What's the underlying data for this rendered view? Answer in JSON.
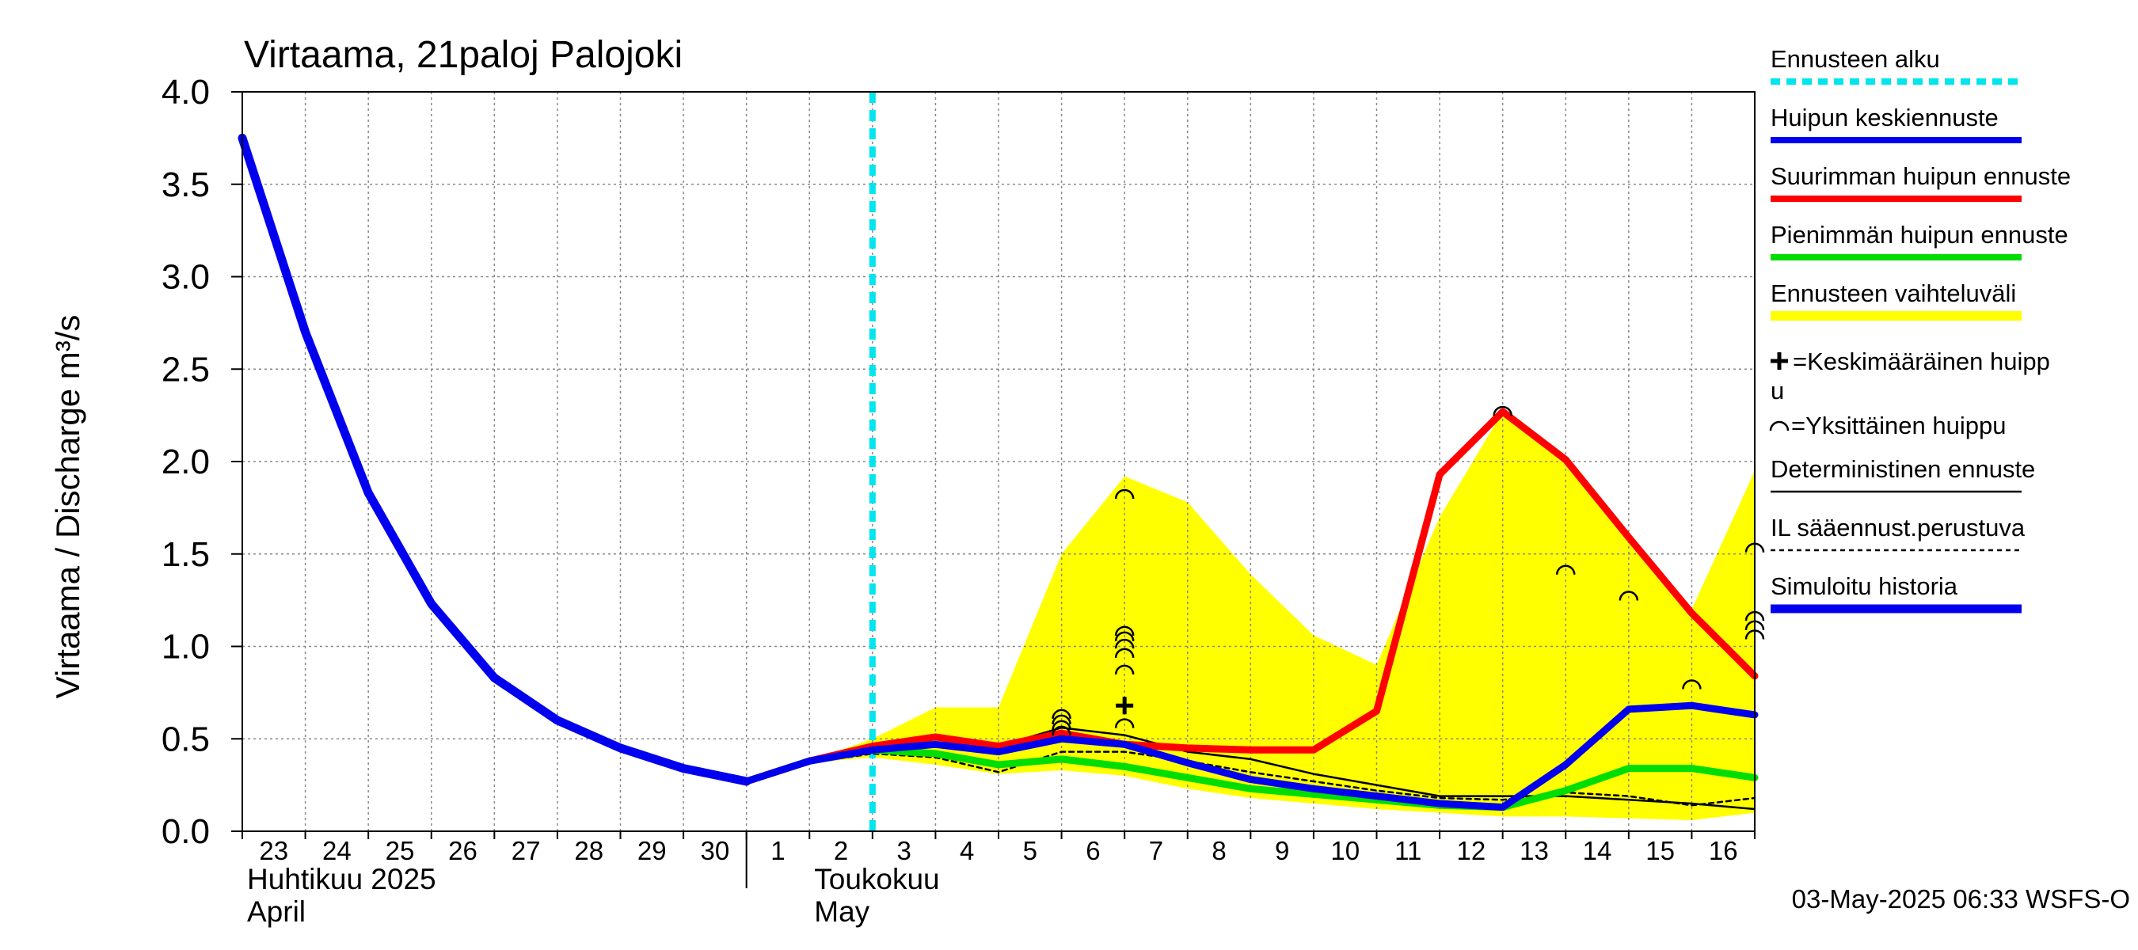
{
  "title": "Virtaama, 21paloj Palojoki",
  "timestamp": "03-May-2025 06:33 WSFS-O",
  "colors": {
    "history": "#0000ee",
    "mean_peak": "#0000ee",
    "max_peak": "#ff0000",
    "min_peak": "#00dd00",
    "range": "#ffff00",
    "forecast_start": "#00e5ee",
    "deterministic": "#000000",
    "grid": "#888888"
  },
  "chart_data": {
    "type": "line",
    "title": "Virtaama, 21paloj Palojoki",
    "ylabel": "Virtaama / Discharge    m³/s",
    "ylim": [
      0,
      4
    ],
    "xlim": [
      0,
      24
    ],
    "yticks": [
      {
        "v": 0,
        "label": "0.0"
      },
      {
        "v": 0.5,
        "label": "0.5"
      },
      {
        "v": 1.0,
        "label": "1.0"
      },
      {
        "v": 1.5,
        "label": "1.5"
      },
      {
        "v": 2.0,
        "label": "2.0"
      },
      {
        "v": 2.5,
        "label": "2.5"
      },
      {
        "v": 3.0,
        "label": "3.0"
      },
      {
        "v": 3.5,
        "label": "3.5"
      },
      {
        "v": 4.0,
        "label": "4.0"
      }
    ],
    "day_labels": [
      "23",
      "24",
      "25",
      "26",
      "27",
      "28",
      "29",
      "30",
      "1",
      "2",
      "3",
      "4",
      "5",
      "6",
      "7",
      "8",
      "9",
      "10",
      "11",
      "12",
      "13",
      "14",
      "15",
      "16"
    ],
    "months": [
      {
        "fi": "Huhtikuu  2025",
        "en": "April",
        "x": 0
      },
      {
        "fi": "Toukokuu",
        "en": "May",
        "x": 9
      }
    ],
    "month_divider_x": 8,
    "forecast_start_x": 10.0,
    "series": [
      {
        "name": "Simuloitu historia",
        "x": [
          0,
          1,
          2,
          3,
          4,
          5,
          6,
          7,
          8
        ],
        "y": [
          3.75,
          2.7,
          1.83,
          1.23,
          0.83,
          0.6,
          0.45,
          0.34,
          0.27
        ]
      },
      {
        "name": "Huipun keskiennuste",
        "x": [
          8,
          9,
          10,
          11,
          12,
          13,
          14,
          15,
          16,
          17,
          18,
          19,
          20,
          21,
          22,
          23,
          24
        ],
        "y": [
          0.27,
          0.38,
          0.44,
          0.47,
          0.43,
          0.5,
          0.47,
          0.37,
          0.28,
          0.23,
          0.19,
          0.15,
          0.13,
          0.36,
          0.66,
          0.68,
          0.63
        ]
      },
      {
        "name": "Suurimman huipun ennuste",
        "x": [
          8,
          9,
          10,
          11,
          12,
          13,
          14,
          15,
          16,
          17,
          18,
          19,
          20,
          21,
          22,
          23,
          24
        ],
        "y": [
          0.27,
          0.38,
          0.46,
          0.51,
          0.46,
          0.53,
          0.47,
          0.45,
          0.44,
          0.44,
          0.65,
          1.93,
          2.27,
          2.01,
          1.59,
          1.18,
          0.84
        ]
      },
      {
        "name": "Pienimmän huipun ennuste",
        "x": [
          8,
          9,
          10,
          11,
          12,
          13,
          14,
          15,
          16,
          17,
          18,
          19,
          20,
          21,
          22,
          23,
          24
        ],
        "y": [
          0.27,
          0.38,
          0.44,
          0.42,
          0.36,
          0.39,
          0.35,
          0.29,
          0.23,
          0.2,
          0.17,
          0.14,
          0.13,
          0.22,
          0.34,
          0.34,
          0.29
        ]
      },
      {
        "name": "Deterministinen ennuste",
        "x": [
          8,
          9,
          10,
          11,
          12,
          13,
          14,
          15,
          16,
          17,
          18,
          19,
          20,
          21,
          22,
          23,
          24
        ],
        "y": [
          0.27,
          0.38,
          0.46,
          0.48,
          0.46,
          0.56,
          0.52,
          0.43,
          0.39,
          0.31,
          0.25,
          0.19,
          0.19,
          0.19,
          0.17,
          0.15,
          0.12
        ]
      },
      {
        "name": "IL sääennust.perustuva",
        "x": [
          8,
          9,
          10,
          11,
          12,
          13,
          14,
          15,
          16,
          17,
          18,
          19,
          20,
          21,
          22,
          23,
          24
        ],
        "y": [
          0.27,
          0.37,
          0.42,
          0.4,
          0.32,
          0.43,
          0.43,
          0.38,
          0.32,
          0.27,
          0.22,
          0.18,
          0.17,
          0.21,
          0.19,
          0.14,
          0.18
        ]
      }
    ],
    "range_band": {
      "name": "Ennusteen vaihteluväli",
      "x": [
        8,
        9,
        10,
        11,
        12,
        13,
        14,
        15,
        16,
        17,
        18,
        19,
        20,
        21,
        22,
        23,
        24
      ],
      "upper": [
        0.27,
        0.38,
        0.5,
        0.67,
        0.67,
        1.5,
        1.92,
        1.78,
        1.39,
        1.06,
        0.9,
        1.7,
        2.27,
        2.0,
        1.6,
        1.2,
        1.95
      ],
      "lower": [
        0.27,
        0.37,
        0.4,
        0.36,
        0.31,
        0.33,
        0.3,
        0.23,
        0.18,
        0.15,
        0.12,
        0.1,
        0.08,
        0.08,
        0.07,
        0.06,
        0.1
      ]
    },
    "mean_peak_marker": {
      "x": 14,
      "y": 0.68
    },
    "single_peaks": [
      {
        "x": 13,
        "y": 0.63
      },
      {
        "x": 13,
        "y": 0.6
      },
      {
        "x": 13,
        "y": 0.57
      },
      {
        "x": 13,
        "y": 0.54
      },
      {
        "x": 14,
        "y": 1.82
      },
      {
        "x": 14,
        "y": 1.08
      },
      {
        "x": 14,
        "y": 1.05
      },
      {
        "x": 14,
        "y": 1.01
      },
      {
        "x": 14,
        "y": 0.96
      },
      {
        "x": 14,
        "y": 0.87
      },
      {
        "x": 14,
        "y": 0.58
      },
      {
        "x": 20,
        "y": 2.27
      },
      {
        "x": 21,
        "y": 1.41
      },
      {
        "x": 22,
        "y": 1.27
      },
      {
        "x": 23,
        "y": 0.79
      },
      {
        "x": 24,
        "y": 1.53
      },
      {
        "x": 24,
        "y": 1.16
      },
      {
        "x": 24,
        "y": 1.11
      },
      {
        "x": 24,
        "y": 1.06
      }
    ]
  },
  "legend": [
    {
      "label": "Ennusteen alku",
      "style": "dash-cyan"
    },
    {
      "label": "Huipun keskiennuste",
      "style": "line-blue"
    },
    {
      "label": "Suurimman huipun ennuste",
      "style": "line-red"
    },
    {
      "label": "Pienimmän huipun ennuste",
      "style": "line-green"
    },
    {
      "label": "Ennusteen vaihteluväli",
      "style": "band-yellow"
    },
    {
      "label": "=Keskimääräinen huipp",
      "label2": "u",
      "style": "plus"
    },
    {
      "label": "=Yksittäinen huippu",
      "style": "arc"
    },
    {
      "label": "Deterministinen ennuste",
      "style": "line-thin"
    },
    {
      "label": "IL sääennust.perustuva",
      "style": "dashed-thin"
    },
    {
      "label": "Simuloitu historia",
      "style": "line-blue-thick"
    }
  ]
}
